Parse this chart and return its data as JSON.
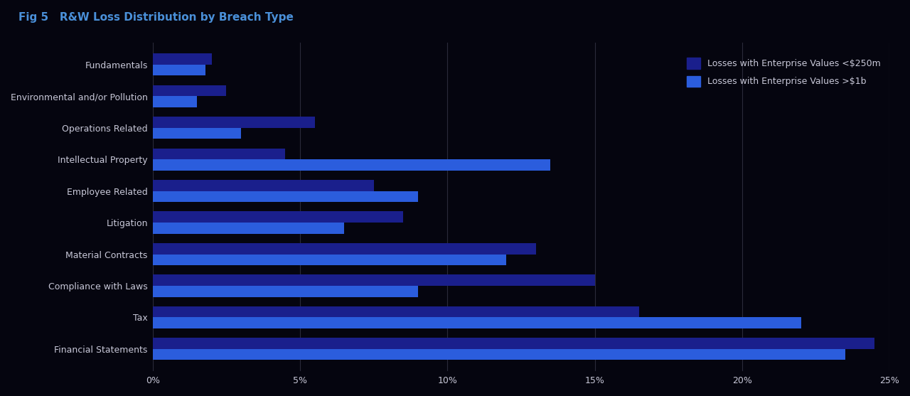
{
  "title": "Fig 5   R&W Loss Distribution by Breach Type",
  "categories": [
    "Financial Statements",
    "Tax",
    "Compliance with Laws",
    "Material Contracts",
    "Litigation",
    "Employee Related",
    "Intellectual Property",
    "Operations Related",
    "Environmental and/or Pollution",
    "Fundamentals"
  ],
  "series": [
    {
      "label": "Losses with Enterprise Values <$250m",
      "color": "#1a1f8c",
      "values": [
        24.5,
        16.5,
        15.0,
        13.0,
        8.5,
        7.5,
        4.5,
        5.5,
        2.5,
        2.0
      ]
    },
    {
      "label": "Losses with Enterprise Values >$1b",
      "color": "#2b5ddd",
      "values": [
        23.5,
        22.0,
        9.0,
        12.0,
        6.5,
        9.0,
        13.5,
        3.0,
        1.5,
        1.8
      ]
    }
  ],
  "xlim": [
    0,
    25
  ],
  "xtick_values": [
    0,
    5,
    10,
    15,
    20,
    25
  ],
  "xtick_labels": [
    "0%",
    "5%",
    "10%",
    "15%",
    "20%",
    "25%"
  ],
  "background_color": "#05050f",
  "text_color": "#c8c8d8",
  "grid_color": "#2a2a3a",
  "title_color": "#4a90d9",
  "title_fontsize": 11,
  "label_fontsize": 9,
  "legend_fontsize": 9,
  "bar_height": 0.35,
  "figsize": [
    12.8,
    5.57
  ]
}
